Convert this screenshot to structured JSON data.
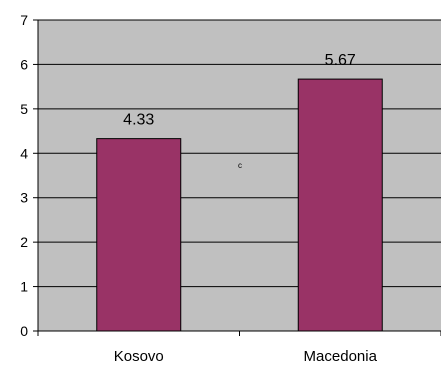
{
  "chart_data": {
    "type": "bar",
    "categories": [
      "Kosovo",
      "Macedonia"
    ],
    "values": [
      4.33,
      5.67
    ],
    "data_labels": [
      "4.33",
      "5.67"
    ],
    "title": "",
    "xlabel": "",
    "ylabel": "",
    "ylim": [
      0,
      7
    ],
    "yticks": [
      "0",
      "1",
      "2",
      "3",
      "4",
      "5",
      "6",
      "7"
    ],
    "grid": true,
    "legend": "none",
    "annotation": "c",
    "colors": {
      "bar": "#993366",
      "plot_bg": "#c0c0c0",
      "grid": "#000000",
      "axis": "#000000"
    }
  }
}
